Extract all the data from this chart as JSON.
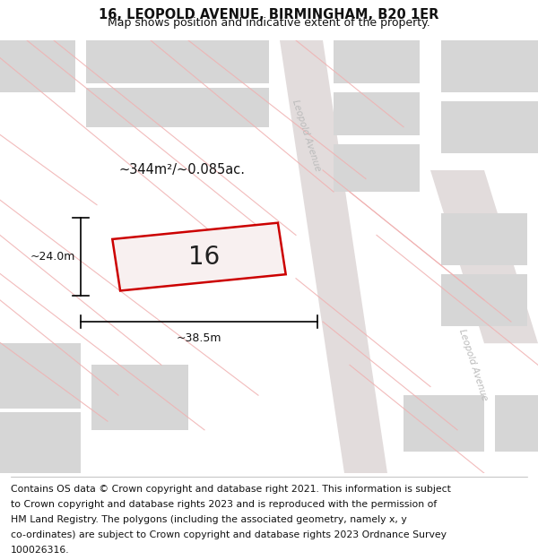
{
  "title": "16, LEOPOLD AVENUE, BIRMINGHAM, B20 1ER",
  "subtitle": "Map shows position and indicative extent of the property.",
  "footer_line1": "Contains OS data © Crown copyright and database right 2021. This information is subject",
  "footer_line2": "to Crown copyright and database rights 2023 and is reproduced with the permission of",
  "footer_line3": "HM Land Registry. The polygons (including the associated geometry, namely x, y",
  "footer_line4": "co-ordinates) are subject to Crown copyright and database rights 2023 Ordnance Survey",
  "footer_line5": "100026316.",
  "area_label": "~344m²/~0.085ac.",
  "width_label": "~38.5m",
  "height_label": "~24.0m",
  "number_label": "16",
  "bg_color": "#ffffff",
  "map_bg": "#f5f0f0",
  "block_color": "#d6d6d6",
  "road_stripe_color": "#e8e4e4",
  "road_line_color": "#f0b0b0",
  "property_color": "#cc0000",
  "road_label_color": "#bbbbbb",
  "title_fontsize": 10.5,
  "subtitle_fontsize": 9,
  "footer_fontsize": 7.8,
  "number_fontsize": 20
}
